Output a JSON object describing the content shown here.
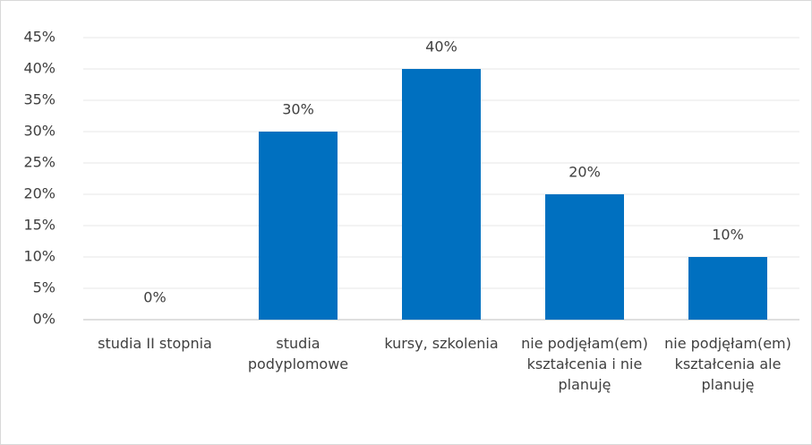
{
  "chart_data": {
    "type": "bar",
    "categories": [
      "studia II stopnia",
      "studia podyplomowe",
      "kursy, szkolenia",
      "nie podjęłam(em) kształcenia i nie planuję",
      "nie podjęłam(em) kształcenia ale planuję"
    ],
    "values": [
      0,
      30,
      40,
      20,
      10
    ],
    "value_labels": [
      "0%",
      "30%",
      "40%",
      "20%",
      "10%"
    ],
    "color": "#0070c0",
    "ylim": [
      0,
      45
    ],
    "yticks": [
      {
        "value": 0,
        "label": "0%"
      },
      {
        "value": 5,
        "label": "5%"
      },
      {
        "value": 10,
        "label": "10%"
      },
      {
        "value": 15,
        "label": "15%"
      },
      {
        "value": 20,
        "label": "20%"
      },
      {
        "value": 25,
        "label": "25%"
      },
      {
        "value": 30,
        "label": "30%"
      },
      {
        "value": 35,
        "label": "35%"
      },
      {
        "value": 40,
        "label": "40%"
      },
      {
        "value": 45,
        "label": "45%"
      }
    ],
    "grid": true
  }
}
